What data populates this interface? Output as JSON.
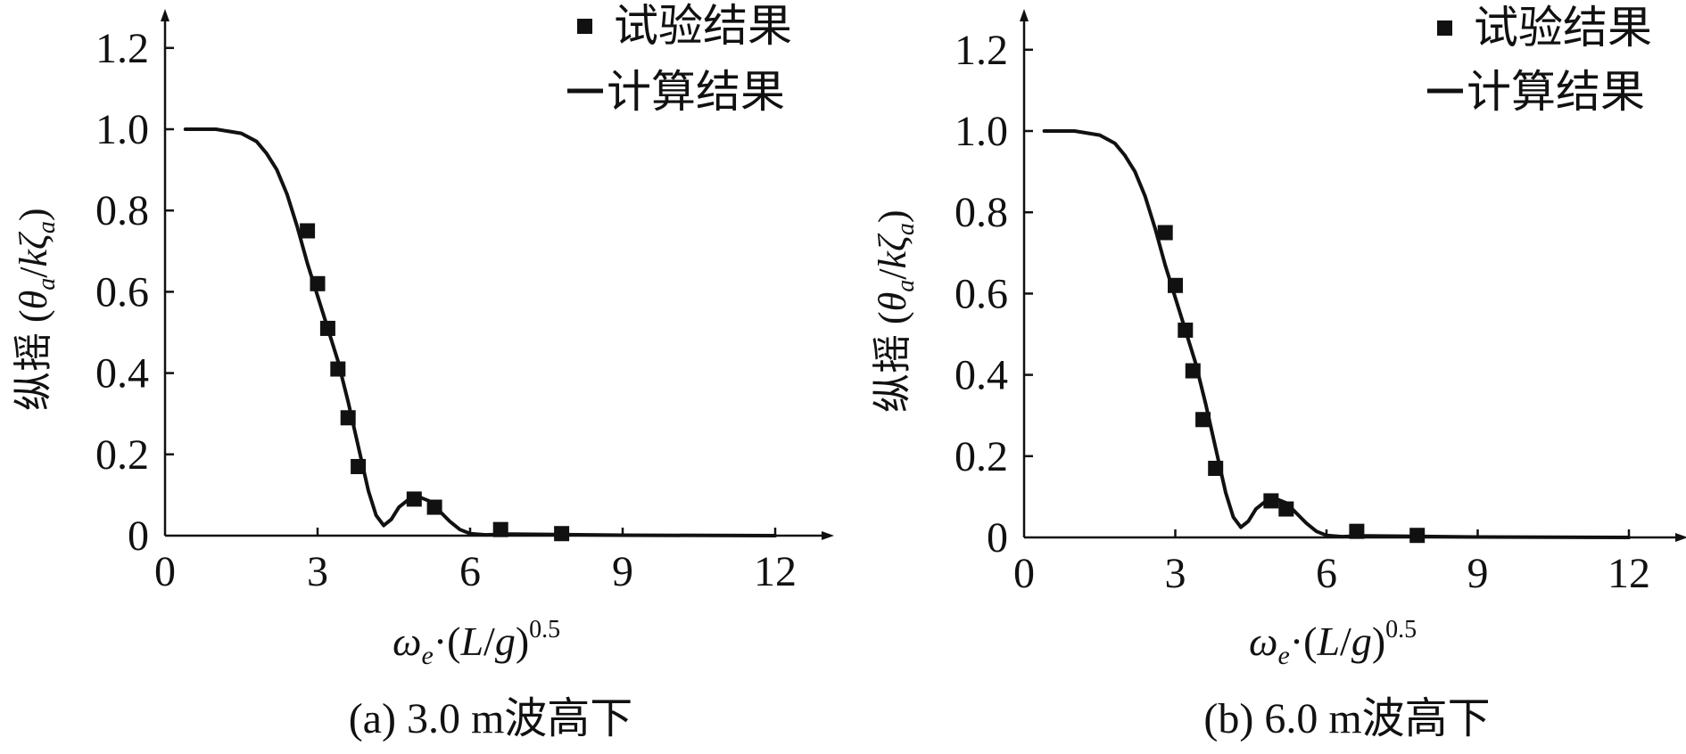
{
  "chart_data": [
    {
      "type": "line",
      "caption": "(a) 3.0 m波高下",
      "ylabel": {
        "main": "纵摇",
        "symbol_open": " (",
        "theta": "θ",
        "theta_sub": "a",
        "slash": "/",
        "k": "k",
        "zeta": "ζ",
        "zeta_sub": "a",
        "close": ")"
      },
      "xlabel": {
        "omega": "ω",
        "omega_sub": "e",
        "dot": "·(",
        "L": "L",
        "slash": "/",
        "g": "g",
        "close": ")",
        "power": "0.5"
      },
      "x_ticks": [
        "0",
        "3",
        "6",
        "9",
        "12"
      ],
      "y_ticks": [
        "0",
        "0.2",
        "0.4",
        "0.6",
        "0.8",
        "1.0",
        "1.2"
      ],
      "xlim": [
        0,
        13
      ],
      "ylim": [
        0,
        1.3
      ],
      "legend": {
        "position": "top-right",
        "items": [
          "试验结果",
          "计算结果"
        ]
      },
      "grid": false,
      "series": [
        {
          "name": "试验结果",
          "kind": "scatter",
          "x": [
            2.8,
            3.0,
            3.2,
            3.4,
            3.6,
            3.8,
            4.9,
            5.3,
            6.6,
            7.8
          ],
          "y": [
            0.75,
            0.62,
            0.51,
            0.41,
            0.29,
            0.17,
            0.09,
            0.07,
            0.015,
            0.005
          ]
        },
        {
          "name": "计算结果",
          "kind": "line",
          "x": [
            0.4,
            1.0,
            1.5,
            1.8,
            2.0,
            2.2,
            2.4,
            2.6,
            2.8,
            3.0,
            3.2,
            3.4,
            3.6,
            3.8,
            4.0,
            4.15,
            4.3,
            4.45,
            4.6,
            4.8,
            5.0,
            5.2,
            5.4,
            5.6,
            5.8,
            6.0,
            6.3,
            6.8,
            7.5,
            9.0,
            12.0
          ],
          "y": [
            1.0,
            1.0,
            0.99,
            0.97,
            0.94,
            0.9,
            0.84,
            0.76,
            0.67,
            0.59,
            0.51,
            0.43,
            0.33,
            0.22,
            0.11,
            0.05,
            0.025,
            0.04,
            0.07,
            0.09,
            0.095,
            0.085,
            0.06,
            0.035,
            0.015,
            0.005,
            0.002,
            0.004,
            0.003,
            0.001,
            0.0
          ]
        }
      ]
    },
    {
      "type": "line",
      "caption": "(b) 6.0 m波高下",
      "ylabel": {
        "main": "纵摇",
        "symbol_open": " (",
        "theta": "θ",
        "theta_sub": "a",
        "slash": "/",
        "k": "k",
        "zeta": "ζ",
        "zeta_sub": "a",
        "close": ")"
      },
      "xlabel": {
        "omega": "ω",
        "omega_sub": "e",
        "dot": "·(",
        "L": "L",
        "slash": "/",
        "g": "g",
        "close": ")",
        "power": "0.5"
      },
      "x_ticks": [
        "0",
        "3",
        "6",
        "9",
        "12"
      ],
      "y_ticks": [
        "0",
        "0.2",
        "0.4",
        "0.6",
        "0.8",
        "1.0",
        "1.2"
      ],
      "xlim": [
        0,
        13
      ],
      "ylim": [
        0,
        1.3
      ],
      "legend": {
        "position": "top-right",
        "items": [
          "试验结果",
          "计算结果"
        ]
      },
      "grid": false,
      "series": [
        {
          "name": "试验结果",
          "kind": "scatter",
          "x": [
            2.8,
            3.0,
            3.2,
            3.35,
            3.55,
            3.8,
            4.9,
            5.2,
            6.6,
            7.8
          ],
          "y": [
            0.75,
            0.62,
            0.51,
            0.41,
            0.29,
            0.17,
            0.09,
            0.07,
            0.015,
            0.005
          ]
        },
        {
          "name": "计算结果",
          "kind": "line",
          "x": [
            0.4,
            1.0,
            1.5,
            1.8,
            2.0,
            2.2,
            2.4,
            2.6,
            2.8,
            3.0,
            3.2,
            3.4,
            3.6,
            3.8,
            4.0,
            4.15,
            4.3,
            4.45,
            4.6,
            4.8,
            5.0,
            5.2,
            5.4,
            5.6,
            5.8,
            6.0,
            6.3,
            6.8,
            7.5,
            9.0,
            12.0
          ],
          "y": [
            1.0,
            1.0,
            0.99,
            0.97,
            0.94,
            0.9,
            0.84,
            0.76,
            0.67,
            0.59,
            0.51,
            0.43,
            0.33,
            0.22,
            0.11,
            0.05,
            0.025,
            0.04,
            0.07,
            0.09,
            0.095,
            0.085,
            0.06,
            0.035,
            0.015,
            0.005,
            0.002,
            0.004,
            0.003,
            0.001,
            0.0
          ]
        }
      ]
    }
  ]
}
